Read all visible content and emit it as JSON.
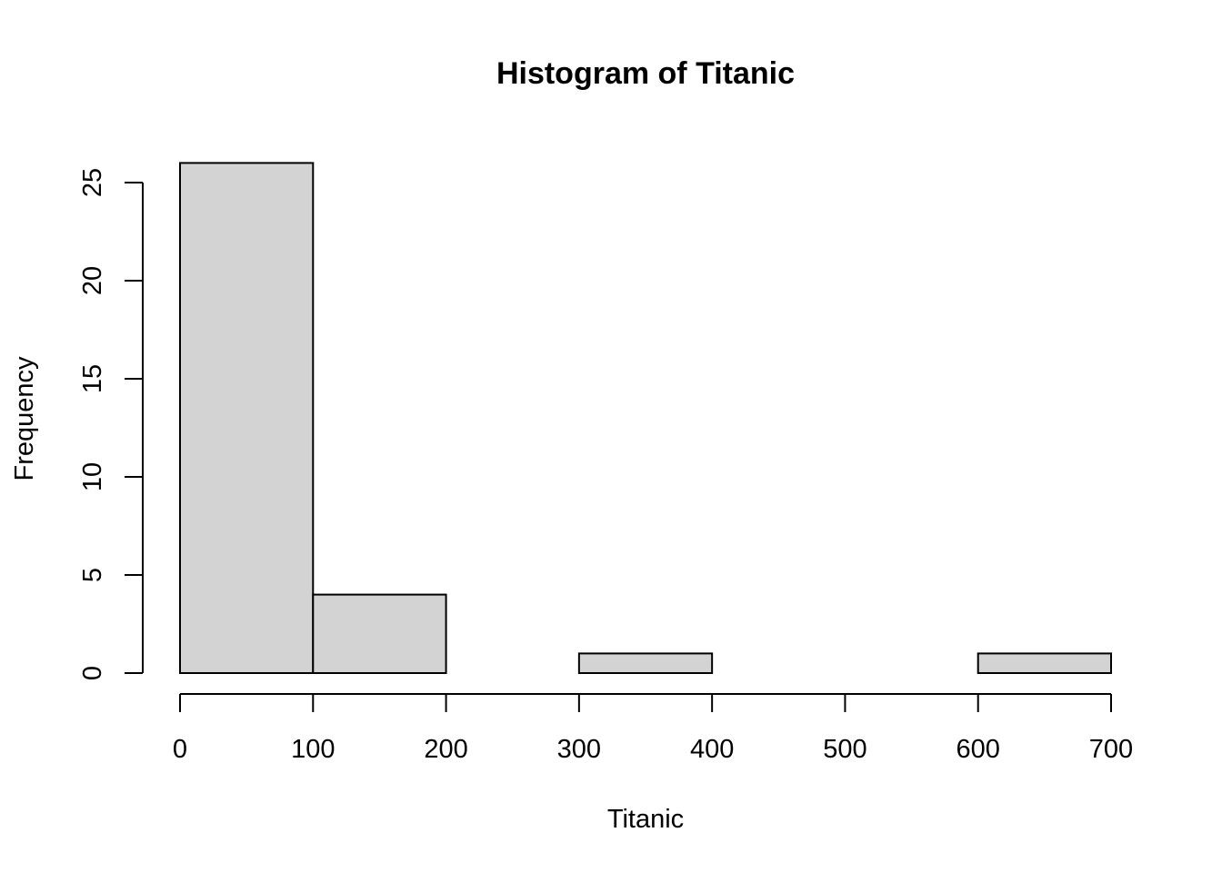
{
  "chart_data": {
    "type": "bar",
    "subtype": "histogram",
    "title": "Histogram of Titanic",
    "xlabel": "Titanic",
    "ylabel": "Frequency",
    "bins": [
      {
        "start": 0,
        "end": 100,
        "count": 26
      },
      {
        "start": 100,
        "end": 200,
        "count": 4
      },
      {
        "start": 200,
        "end": 300,
        "count": 0
      },
      {
        "start": 300,
        "end": 400,
        "count": 1
      },
      {
        "start": 400,
        "end": 500,
        "count": 0
      },
      {
        "start": 500,
        "end": 600,
        "count": 0
      },
      {
        "start": 600,
        "end": 700,
        "count": 1
      }
    ],
    "xlim": [
      0,
      700
    ],
    "ylim": [
      0,
      26
    ],
    "x_ticks": [
      0,
      100,
      200,
      300,
      400,
      500,
      600,
      700
    ],
    "y_ticks": [
      0,
      5,
      10,
      15,
      20,
      25
    ],
    "bar_fill": "#d3d3d3",
    "bar_stroke": "#000000",
    "grid": false,
    "legend": "none"
  }
}
